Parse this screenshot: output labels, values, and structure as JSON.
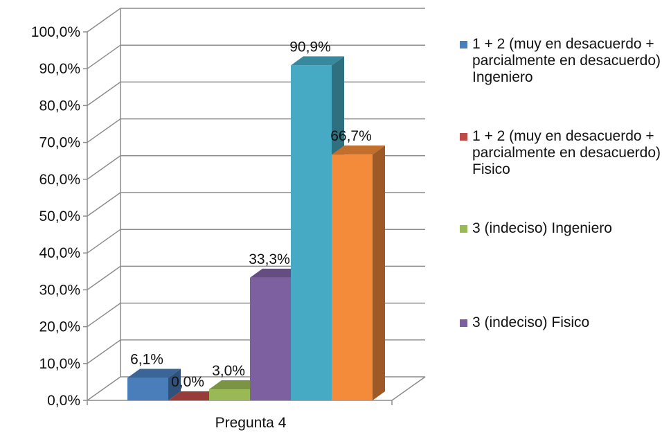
{
  "chart_data": {
    "type": "bar",
    "categories": [
      "Pregunta 4"
    ],
    "series": [
      {
        "name": "1 + 2 (muy en desacuerdo + parcialmente en desacuerdo) Ingeniero",
        "values": [
          6.1
        ],
        "label": "6,1%",
        "color": "#4a7ebb"
      },
      {
        "name": "1 + 2 (muy en desacuerdo + parcialmente en desacuerdo) Fisico",
        "values": [
          0.0
        ],
        "label": "0,0%",
        "color": "#be4b48"
      },
      {
        "name": "3 (indeciso)  Ingeniero",
        "values": [
          3.0
        ],
        "label": "3,0%",
        "color": "#98b954"
      },
      {
        "name": "3 (indeciso)  Fisico",
        "values": [
          33.3
        ],
        "label": "33,3%",
        "color": "#7d60a0"
      },
      {
        "name": "",
        "values": [
          90.9
        ],
        "label": "90,9%",
        "color": "#46aac5"
      },
      {
        "name": "",
        "values": [
          66.7
        ],
        "label": "66,7%",
        "color": "#f38b3a"
      }
    ],
    "y_ticks": [
      "0,0%",
      "10,0%",
      "20,0%",
      "30,0%",
      "40,0%",
      "50,0%",
      "60,0%",
      "70,0%",
      "80,0%",
      "90,0%",
      "100,0%"
    ],
    "ylim": [
      0,
      100
    ],
    "grid": true,
    "style": "3d-clustered-column",
    "legend_position": "right",
    "title": "",
    "xlabel": "",
    "ylabel": ""
  },
  "legend": {
    "items": [
      {
        "text": "1 + 2 (muy en desacuerdo + parcialmente en desacuerdo) Ingeniero",
        "color": "#4a7ebb"
      },
      {
        "text": "1 + 2 (muy en desacuerdo + parcialmente en desacuerdo) Fisico",
        "color": "#be4b48"
      },
      {
        "text": "3 (indeciso)  Ingeniero",
        "color": "#98b954"
      },
      {
        "text": "3 (indeciso)  Fisico",
        "color": "#7d60a0"
      }
    ]
  }
}
